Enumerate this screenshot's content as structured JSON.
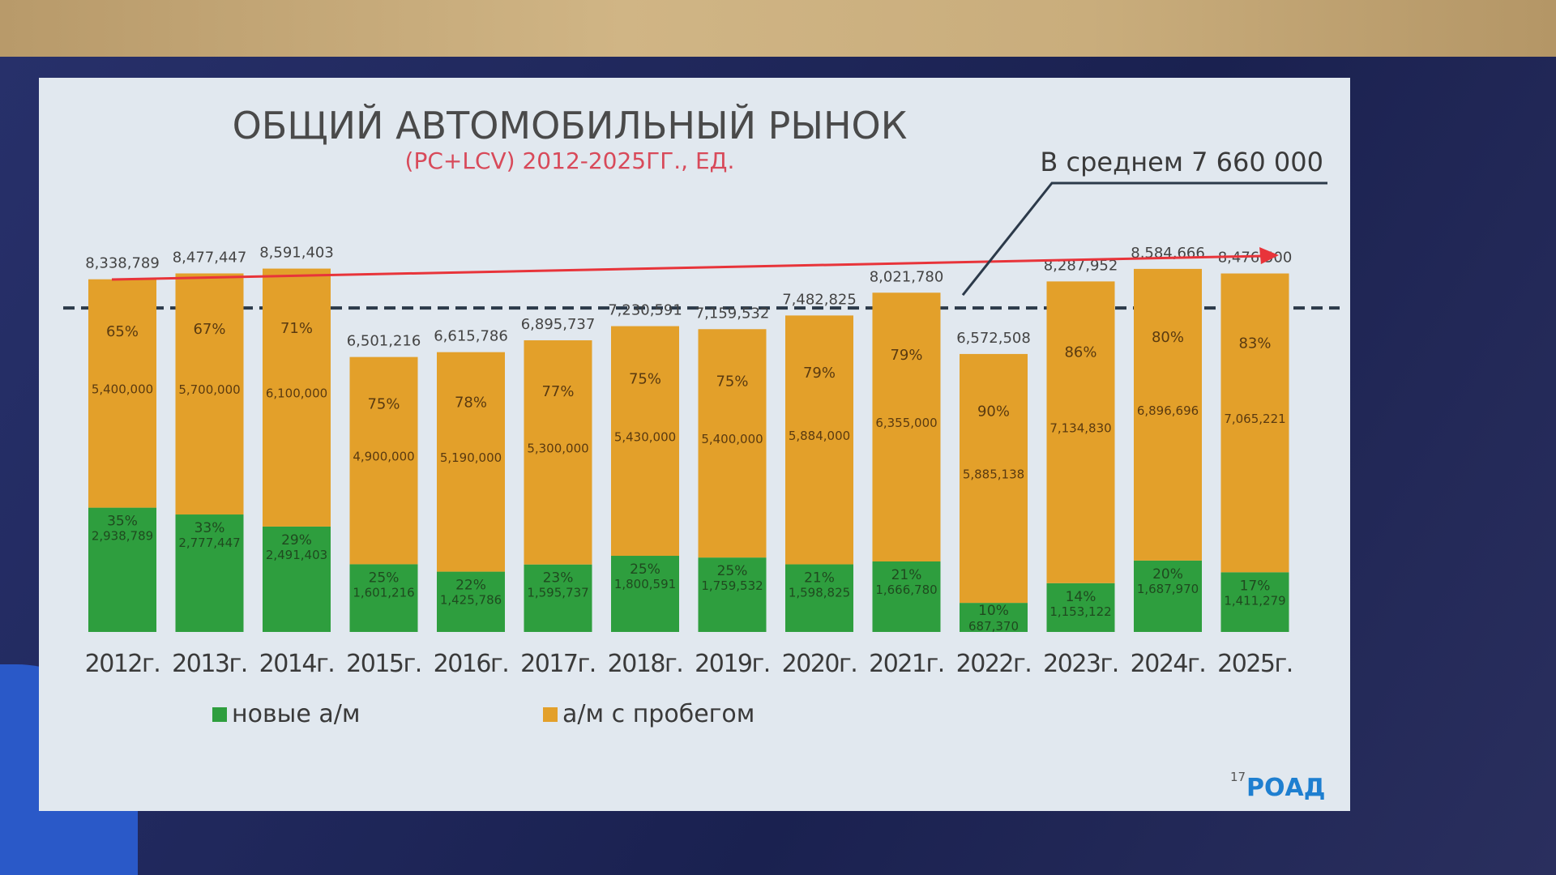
{
  "slide": {
    "title": "ОБЩИЙ АВТОМОБИЛЬНЫЙ РЫНОК",
    "subtitle": "(PC+LCV) 2012-2025ГГ., ЕД.",
    "page_number": "17",
    "logo": "РОАД"
  },
  "colors": {
    "new": "#2e9e3e",
    "used": "#e3a02a",
    "trend": "#e8343a",
    "average": "#2c3a4a",
    "title": "#4a4a4a",
    "subtitle": "#d84a5a"
  },
  "chart_data": {
    "type": "bar",
    "stacked": true,
    "title": "ОБЩИЙ АВТОМОБИЛЬНЫЙ РЫНОК",
    "subtitle": "(PC+LCV) 2012-2025ГГ., ЕД.",
    "categories": [
      "2012г.",
      "2013г.",
      "2014г.",
      "2015г.",
      "2016г.",
      "2017г.",
      "2018г.",
      "2019г.",
      "2020г.",
      "2021г.",
      "2022г.",
      "2023г.",
      "2024г.",
      "2025г."
    ],
    "totals": [
      "8,338,789",
      "8,477,447",
      "8,591,403",
      "6,501,216",
      "6,615,786",
      "6,895,737",
      "7,230,591",
      "7,159,532",
      "7,482,825",
      "8,021,780",
      "6,572,508",
      "8,287,952",
      "8,584,666",
      "8,476,500"
    ],
    "series": [
      {
        "name": "новые а/м",
        "values": [
          2938789,
          2777447,
          2491403,
          1601216,
          1425786,
          1595737,
          1800591,
          1759532,
          1598825,
          1666780,
          687370,
          1153122,
          1687970,
          1411279
        ],
        "labels": [
          "2,938,789",
          "2,777,447",
          "2,491,403",
          "1,601,216",
          "1,425,786",
          "1,595,737",
          "1,800,591",
          "1,759,532",
          "1,598,825",
          "1,666,780",
          "687,370",
          "1,153,122",
          "1,687,970",
          "1,411,279"
        ],
        "pct": [
          "35%",
          "33%",
          "29%",
          "25%",
          "22%",
          "23%",
          "25%",
          "25%",
          "21%",
          "21%",
          "10%",
          "14%",
          "20%",
          "17%"
        ]
      },
      {
        "name": "а/м с пробегом",
        "values": [
          5400000,
          5700000,
          6100000,
          4900000,
          5190000,
          5300000,
          5430000,
          5400000,
          5884000,
          6355000,
          5885138,
          7134830,
          6896696,
          7065221
        ],
        "labels": [
          "5,400,000",
          "5,700,000",
          "6,100,000",
          "4,900,000",
          "5,190,000",
          "5,300,000",
          "5,430,000",
          "5,400,000",
          "5,884,000",
          "6,355,000",
          "5,885,138",
          "7,134,830",
          "6,896,696",
          "7,065,221"
        ],
        "pct": [
          "65%",
          "67%",
          "71%",
          "75%",
          "78%",
          "77%",
          "75%",
          "75%",
          "79%",
          "79%",
          "90%",
          "86%",
          "80%",
          "83%"
        ]
      }
    ],
    "average": {
      "value": 7660000,
      "label": "В среднем 7 660 000"
    },
    "legend_position": "bottom-left"
  }
}
